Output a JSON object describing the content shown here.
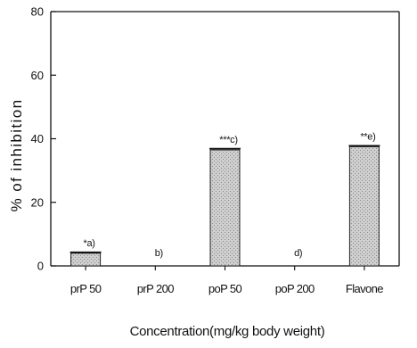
{
  "chart_data": {
    "type": "bar",
    "title": "",
    "xlabel": "Concentration(mg/kg body weight)",
    "ylabel": "% of inhibition",
    "ylim": [
      0,
      80
    ],
    "yticks": [
      "0",
      "20",
      "40",
      "60",
      "80"
    ],
    "categories": [
      "prP 50",
      "prP 200",
      "poP 50",
      "poP 200",
      "Flavone"
    ],
    "values": [
      4,
      0,
      36.5,
      0,
      37.5
    ],
    "errors": [
      0.3,
      0,
      0.4,
      0,
      0.3
    ],
    "annotations": [
      "*a)",
      "b)",
      "***c)",
      "d)",
      "**e)"
    ],
    "grid": false,
    "bar_fill": "#cfcfcf",
    "bar_pattern_color": "#8a8a8a"
  }
}
